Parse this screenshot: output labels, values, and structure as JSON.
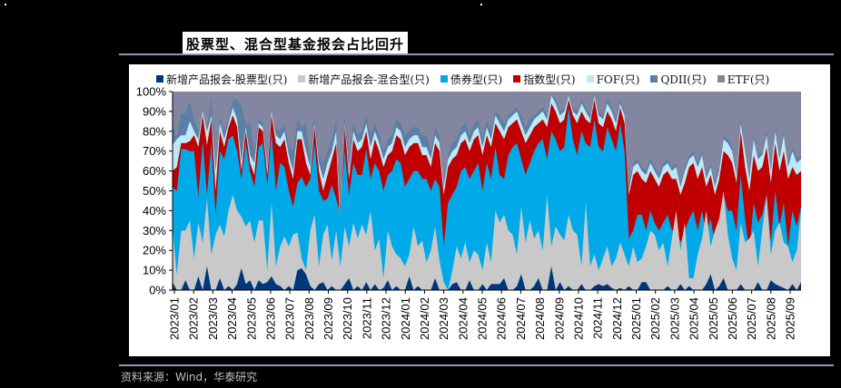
{
  "title": "股票型、混合型基金报会占比回升",
  "source": "资料来源：Wind，华泰研究",
  "colors": {
    "stock": "#00367a",
    "mixed": "#c9c9c9",
    "bond": "#00a9e8",
    "index": "#c00000",
    "fof": "#bde8f8",
    "qdii": "#5b7fa6",
    "etf": "#8386a0",
    "title_rule": "#8a9bb3"
  },
  "legend": [
    {
      "label": "新增产品报会-股票型(只)",
      "color": "#00367a"
    },
    {
      "label": "新增产品报会-混合型(只)",
      "color": "#c9c9c9"
    },
    {
      "label": "债券型(只)",
      "color": "#00a9e8"
    },
    {
      "label": "指数型(只)",
      "color": "#c00000"
    },
    {
      "label": "FOF(只)",
      "color": "#bde8f8"
    },
    {
      "label": "QDII(只)",
      "color": "#5b7fa6"
    },
    {
      "label": "ETF(只)",
      "color": "#8386a0"
    }
  ],
  "chart_data": {
    "type": "area",
    "stacked": "percent",
    "title": "股票型、混合型基金报会占比回升",
    "xlabel": "",
    "ylabel": "",
    "ylim": [
      0,
      100
    ],
    "y_ticks": [
      "0%",
      "10%",
      "20%",
      "30%",
      "40%",
      "50%",
      "60%",
      "70%",
      "80%",
      "90%",
      "100%"
    ],
    "x_ticks": [
      "2023/01",
      "2023/02",
      "2023/03",
      "2023/04",
      "2023/05",
      "2023/06",
      "2023/07",
      "2023/08",
      "2023/09",
      "2023/10",
      "2023/11",
      "2023/12",
      "2024/01",
      "2024/02",
      "2024/03",
      "2024/04",
      "2024/05",
      "2024/06",
      "2024/07",
      "2024/08",
      "2024/09",
      "2024/10",
      "2024/11",
      "2024/12",
      "2025/01",
      "2025/02",
      "2025/03",
      "2025/04",
      "2025/05",
      "2025/06",
      "2025/07",
      "2025/08",
      "2025/09"
    ],
    "legend_position": "top",
    "grid": false,
    "note": "Weekly series; values are cumulative top boundary (%) of each stacked layer, estimated from pixels. Four points per month.",
    "series_cumulative": [
      {
        "name": "新增产品报会-股票型(只)",
        "values": [
          4,
          0,
          0,
          5,
          0,
          0,
          7,
          0,
          12,
          0,
          0,
          6,
          0,
          2,
          0,
          3,
          11,
          3,
          5,
          0,
          5,
          3,
          4,
          7,
          3,
          2,
          0,
          2,
          0,
          10,
          11,
          8,
          2,
          0,
          3,
          4,
          0,
          2,
          0,
          0,
          3,
          6,
          0,
          2,
          0,
          4,
          0,
          3,
          0,
          1,
          5,
          0,
          2,
          0,
          0,
          7,
          0,
          2,
          0,
          0,
          0,
          6,
          0,
          0,
          0,
          3,
          4,
          0,
          0,
          5,
          0,
          0,
          3,
          0,
          3,
          3,
          3,
          6,
          0,
          0,
          2,
          8,
          0,
          0,
          2,
          6,
          0,
          0,
          12,
          0,
          4,
          0,
          2,
          0,
          0,
          3,
          0,
          0,
          2,
          3,
          2,
          3,
          1,
          0,
          1,
          0,
          2,
          0,
          0,
          4,
          4,
          0,
          0,
          0,
          0,
          2,
          0,
          0,
          3,
          0,
          2,
          0,
          0,
          0,
          3,
          8,
          0,
          2,
          6,
          0,
          0,
          0,
          3,
          0,
          0,
          0,
          4,
          0,
          0,
          5,
          3,
          2,
          1,
          0,
          3,
          0,
          4
        ]
      },
      {
        "name": "新增产品报会-混合型(只)",
        "values": [
          31,
          8,
          30,
          30,
          35,
          16,
          34,
          24,
          46,
          18,
          28,
          33,
          27,
          40,
          48,
          40,
          37,
          32,
          35,
          24,
          35,
          35,
          10,
          44,
          12,
          22,
          27,
          22,
          28,
          29,
          16,
          10,
          30,
          38,
          12,
          28,
          33,
          15,
          30,
          12,
          32,
          22,
          34,
          26,
          33,
          28,
          40,
          20,
          26,
          6,
          30,
          22,
          18,
          16,
          12,
          18,
          32,
          22,
          25,
          14,
          20,
          32,
          15,
          4,
          0,
          10,
          22,
          16,
          24,
          14,
          20,
          18,
          10,
          24,
          14,
          40,
          34,
          38,
          30,
          28,
          18,
          42,
          24,
          35,
          26,
          30,
          20,
          48,
          22,
          32,
          28,
          25,
          38,
          30,
          28,
          12,
          44,
          12,
          18,
          10,
          16,
          22,
          12,
          16,
          24,
          18,
          12,
          22,
          14,
          16,
          22,
          30,
          28,
          20,
          24,
          12,
          26,
          40,
          20,
          34,
          6,
          6,
          18,
          26,
          40,
          22,
          30,
          36,
          50,
          28,
          16,
          10,
          34,
          24,
          26,
          30,
          12,
          30,
          48,
          18,
          30,
          34,
          24,
          22,
          14,
          20,
          40
        ]
      },
      {
        "name": "债券型(只)",
        "values": [
          52,
          50,
          71,
          71,
          70,
          70,
          47,
          75,
          48,
          74,
          38,
          70,
          66,
          76,
          78,
          70,
          56,
          74,
          60,
          52,
          72,
          74,
          53,
          80,
          50,
          64,
          62,
          50,
          42,
          54,
          57,
          52,
          56,
          74,
          50,
          45,
          46,
          53,
          46,
          38,
          70,
          48,
          64,
          58,
          58,
          71,
          56,
          64,
          60,
          50,
          58,
          60,
          66,
          64,
          52,
          56,
          60,
          60,
          56,
          56,
          50,
          56,
          52,
          22,
          44,
          48,
          52,
          60,
          62,
          56,
          60,
          64,
          50,
          64,
          56,
          72,
          58,
          56,
          68,
          72,
          74,
          66,
          58,
          64,
          70,
          74,
          76,
          66,
          80,
          76,
          70,
          72,
          92,
          76,
          68,
          80,
          74,
          72,
          86,
          72,
          70,
          82,
          76,
          70,
          84,
          70,
          26,
          30,
          38,
          38,
          30,
          40,
          34,
          30,
          34,
          38,
          30,
          30,
          24,
          30,
          36,
          40,
          30,
          40,
          28,
          36,
          24,
          34,
          48,
          40,
          40,
          30,
          58,
          36,
          20,
          44,
          34,
          38,
          48,
          24,
          50,
          32,
          44,
          22,
          40,
          32,
          42
        ]
      },
      {
        "name": "指数型(只)",
        "values": [
          60,
          62,
          74,
          74,
          75,
          78,
          72,
          88,
          73,
          86,
          50,
          80,
          72,
          82,
          88,
          82,
          60,
          80,
          64,
          58,
          82,
          80,
          58,
          88,
          74,
          72,
          76,
          64,
          56,
          76,
          76,
          64,
          58,
          82,
          60,
          50,
          58,
          66,
          74,
          30,
          82,
          56,
          76,
          70,
          72,
          80,
          66,
          76,
          70,
          62,
          68,
          70,
          78,
          76,
          68,
          72,
          74,
          74,
          68,
          68,
          62,
          74,
          70,
          48,
          62,
          66,
          68,
          74,
          76,
          70,
          76,
          78,
          68,
          78,
          72,
          84,
          80,
          76,
          82,
          84,
          86,
          80,
          74,
          78,
          82,
          84,
          86,
          82,
          94,
          90,
          84,
          86,
          96,
          88,
          84,
          90,
          86,
          84,
          96,
          84,
          82,
          90,
          86,
          80,
          92,
          84,
          48,
          58,
          60,
          56,
          54,
          60,
          56,
          52,
          58,
          60,
          56,
          56,
          48,
          54,
          62,
          64,
          56,
          62,
          52,
          58,
          48,
          56,
          70,
          68,
          64,
          54,
          80,
          62,
          50,
          68,
          60,
          62,
          72,
          54,
          74,
          60,
          70,
          56,
          62,
          58,
          60
        ]
      },
      {
        "name": "FOF(只)",
        "values": [
          73,
          76,
          78,
          78,
          85,
          80,
          76,
          90,
          80,
          88,
          60,
          84,
          76,
          84,
          92,
          86,
          65,
          82,
          68,
          64,
          84,
          82,
          62,
          90,
          78,
          76,
          80,
          68,
          60,
          80,
          80,
          70,
          62,
          84,
          64,
          56,
          64,
          70,
          80,
          34,
          84,
          60,
          80,
          74,
          76,
          84,
          72,
          80,
          74,
          66,
          72,
          74,
          82,
          80,
          72,
          76,
          78,
          78,
          72,
          72,
          66,
          78,
          74,
          52,
          66,
          70,
          72,
          78,
          80,
          74,
          80,
          82,
          72,
          82,
          76,
          88,
          84,
          80,
          86,
          88,
          90,
          84,
          78,
          82,
          86,
          88,
          90,
          86,
          98,
          94,
          88,
          90,
          98,
          90,
          88,
          94,
          90,
          86,
          98,
          88,
          86,
          94,
          90,
          84,
          94,
          88,
          50,
          62,
          64,
          60,
          58,
          64,
          60,
          56,
          62,
          64,
          60,
          62,
          52,
          60,
          66,
          68,
          62,
          68,
          56,
          62,
          52,
          60,
          76,
          74,
          70,
          58,
          84,
          70,
          56,
          76,
          66,
          68,
          78,
          60,
          80,
          66,
          78,
          62,
          70,
          64,
          66
        ]
      },
      {
        "name": "QDII(只)",
        "values": [
          84,
          77,
          89,
          89,
          95,
          86,
          80,
          88,
          82,
          97,
          62,
          87,
          80,
          86,
          96,
          96,
          93,
          83,
          85,
          70,
          86,
          84,
          64,
          87,
          82,
          80,
          84,
          72,
          70,
          86,
          82,
          84,
          66,
          88,
          68,
          64,
          70,
          76,
          86,
          40,
          88,
          64,
          84,
          78,
          80,
          88,
          78,
          84,
          78,
          70,
          76,
          78,
          86,
          84,
          78,
          80,
          82,
          82,
          78,
          78,
          70,
          82,
          78,
          54,
          68,
          74,
          76,
          82,
          84,
          78,
          84,
          86,
          76,
          86,
          80,
          90,
          88,
          84,
          88,
          90,
          92,
          88,
          82,
          86,
          88,
          90,
          92,
          88,
          99,
          96,
          90,
          92,
          99,
          92,
          90,
          96,
          92,
          88,
          99,
          90,
          88,
          96,
          92,
          86,
          96,
          90,
          52,
          64,
          66,
          62,
          60,
          66,
          62,
          58,
          64,
          66,
          62,
          64,
          54,
          62,
          68,
          70,
          64,
          70,
          58,
          64,
          54,
          62,
          78,
          76,
          72,
          60,
          86,
          72,
          58,
          78,
          68,
          70,
          80,
          62,
          82,
          68,
          80,
          64,
          72,
          66,
          68
        ]
      },
      {
        "name": "ETF(只)",
        "values": [
          100,
          100,
          100,
          100,
          100,
          100,
          100,
          100,
          100,
          100,
          100,
          100,
          100,
          100,
          100,
          100,
          100,
          100,
          100,
          100,
          100,
          100,
          100,
          100,
          100,
          100,
          100,
          100,
          100,
          100,
          100,
          100,
          100,
          100,
          100,
          100,
          100,
          100,
          100,
          100,
          100,
          100,
          100,
          100,
          100,
          100,
          100,
          100,
          100,
          100,
          100,
          100,
          100,
          100,
          100,
          100,
          100,
          100,
          100,
          100,
          100,
          100,
          100,
          100,
          100,
          100,
          100,
          100,
          100,
          100,
          100,
          100,
          100,
          100,
          100,
          100,
          100,
          100,
          100,
          100,
          100,
          100,
          100,
          100,
          100,
          100,
          100,
          100,
          100,
          100,
          100,
          100,
          100,
          100,
          100,
          100,
          100,
          100,
          100,
          100,
          100,
          100,
          100,
          100,
          100,
          100,
          100,
          100,
          100,
          100,
          100,
          100,
          100,
          100,
          100,
          100,
          100,
          100,
          100,
          100,
          100,
          100,
          100,
          100,
          100,
          100,
          100,
          100,
          100,
          100,
          100,
          100,
          100,
          100,
          100,
          100,
          100,
          100,
          100,
          100,
          100,
          100,
          100,
          100,
          100,
          100,
          100
        ]
      }
    ]
  }
}
